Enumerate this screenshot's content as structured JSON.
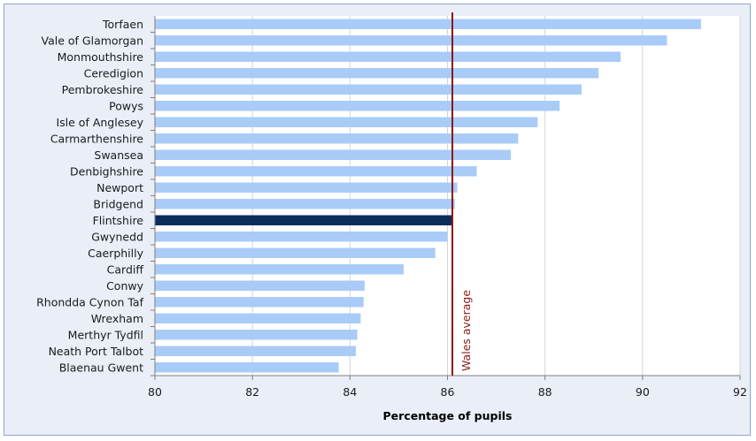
{
  "chart_data": {
    "type": "bar",
    "orientation": "horizontal",
    "title": "",
    "xlabel": "Percentage of pupils",
    "ylabel": "",
    "xlim": [
      80,
      92
    ],
    "xticks": [
      80,
      82,
      84,
      86,
      88,
      90,
      92
    ],
    "grid": "vertical",
    "categories": [
      "Torfaen",
      "Vale of Glamorgan",
      "Monmouthshire",
      "Ceredigion",
      "Pembrokeshire",
      "Powys",
      "Isle of Anglesey",
      "Carmarthenshire",
      "Swansea",
      "Denbighshire",
      "Newport",
      "Bridgend",
      "Flintshire",
      "Gwynedd",
      "Caerphilly",
      "Cardiff",
      "Conwy",
      "Rhondda Cynon Taf",
      "Wrexham",
      "Merthyr Tydfil",
      "Neath Port Talbot",
      "Blaenau Gwent"
    ],
    "values": [
      91.2,
      90.5,
      89.55,
      89.1,
      88.75,
      88.3,
      87.85,
      87.45,
      87.3,
      86.6,
      86.2,
      86.15,
      86.1,
      86.0,
      85.75,
      85.1,
      84.3,
      84.28,
      84.22,
      84.15,
      84.12,
      83.77
    ],
    "highlight": "Flintshire",
    "reference_line": {
      "label": "Wales average",
      "value": 86.1
    },
    "colors": {
      "bar": "#a9cbf7",
      "highlight": "#0b2d5c",
      "reference": "#8b1a1a",
      "grid": "#d4d4d4",
      "plot_background": "#ffffff",
      "frame_background": "#e9eef7"
    }
  }
}
